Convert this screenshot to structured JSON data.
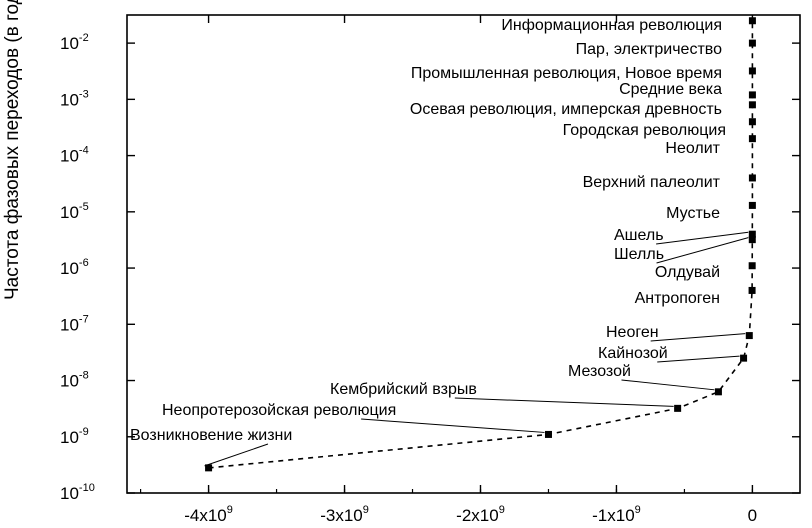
{
  "chart_data": {
    "type": "scatter",
    "ylabel": "Частота фазовых переходов (в год)",
    "xlabel": "",
    "title": "",
    "xlim": [
      -4600000000.0,
      350000000.0
    ],
    "ylim_log10": [
      -10,
      -1.5
    ],
    "y_scale": "log",
    "grid": false,
    "x_ticks": [
      {
        "value": -4000000000.0,
        "label": "-4x10",
        "exp": "9"
      },
      {
        "value": -3000000000.0,
        "label": "-3x10",
        "exp": "9"
      },
      {
        "value": -2000000000.0,
        "label": "-2x10",
        "exp": "9"
      },
      {
        "value": -1000000000.0,
        "label": "-1x10",
        "exp": "9"
      },
      {
        "value": 0,
        "label": "0",
        "exp": ""
      }
    ],
    "y_ticks": [
      {
        "value": -10,
        "label": "10",
        "exp": "-10"
      },
      {
        "value": -9,
        "label": "10",
        "exp": "-9"
      },
      {
        "value": -8,
        "label": "10",
        "exp": "-8"
      },
      {
        "value": -7,
        "label": "10",
        "exp": "-7"
      },
      {
        "value": -6,
        "label": "10",
        "exp": "-6"
      },
      {
        "value": -5,
        "label": "10",
        "exp": "-5"
      },
      {
        "value": -4,
        "label": "10",
        "exp": "-4"
      },
      {
        "value": -3,
        "label": "10",
        "exp": "-3"
      },
      {
        "value": -2,
        "label": "10",
        "exp": "-2"
      }
    ],
    "points": [
      {
        "label": "Возникновение жизни",
        "x": -4000000000.0,
        "y": 2.8e-10
      },
      {
        "label": "Неопротерозойская революция",
        "x": -1500000000.0,
        "y": 1.1e-09
      },
      {
        "label": "Кембрийский взрыв",
        "x": -550000000.0,
        "y": 3.2e-09
      },
      {
        "label": "Мезозой",
        "x": -250000000.0,
        "y": 6.3e-09
      },
      {
        "label": "Кайнозой",
        "x": -65000000.0,
        "y": 2.5e-08
      },
      {
        "label": "Неоген",
        "x": -23000000.0,
        "y": 6.3e-08
      },
      {
        "label": "Антропоген",
        "x": -2500000.0,
        "y": 4e-07
      },
      {
        "label": "Олдувай",
        "x": -1800000.0,
        "y": 1.1e-06
      },
      {
        "label": "Шелль",
        "x": -1000000.0,
        "y": 3.2e-06
      },
      {
        "label": "Ашель",
        "x": -700000.0,
        "y": 4e-06
      },
      {
        "label": "Мустье",
        "x": -300000.0,
        "y": 1.3e-05
      },
      {
        "label": "Верхний палеолит",
        "x": -40000,
        "y": 4e-05
      },
      {
        "label": "Неолит",
        "x": -10000,
        "y": 0.0002
      },
      {
        "label": "Городская революция",
        "x": -5000,
        "y": 0.0004
      },
      {
        "label": "Осевая революция, имперская древность",
        "x": -2500,
        "y": 0.0008
      },
      {
        "label": "Средние века",
        "x": -1500,
        "y": 0.0012
      },
      {
        "label": "Промышленная революция, Новое время",
        "x": -500,
        "y": 0.0032
      },
      {
        "label": "Пар, электричество",
        "x": -150,
        "y": 0.01
      },
      {
        "label": "Информационная революция",
        "x": -50,
        "y": 0.025
      }
    ]
  }
}
